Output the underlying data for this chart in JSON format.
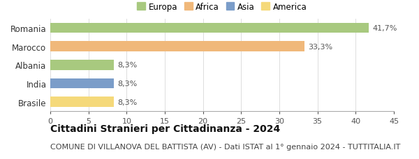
{
  "categories": [
    "Romania",
    "Marocco",
    "Albania",
    "India",
    "Brasile"
  ],
  "values": [
    41.7,
    33.3,
    8.3,
    8.3,
    8.3
  ],
  "labels": [
    "41,7%",
    "33,3%",
    "8,3%",
    "8,3%",
    "8,3%"
  ],
  "bar_colors": [
    "#a8c97f",
    "#f0b87a",
    "#a8c97f",
    "#7b9dc9",
    "#f5d97a"
  ],
  "legend_entries": [
    {
      "label": "Europa",
      "color": "#a8c97f"
    },
    {
      "label": "Africa",
      "color": "#f0b87a"
    },
    {
      "label": "Asia",
      "color": "#7b9dc9"
    },
    {
      "label": "America",
      "color": "#f5d97a"
    }
  ],
  "xlim": [
    0,
    45
  ],
  "xticks": [
    0,
    5,
    10,
    15,
    20,
    25,
    30,
    35,
    40,
    45
  ],
  "title": "Cittadini Stranieri per Cittadinanza - 2024",
  "subtitle": "COMUNE DI VILLANOVA DEL BATTISTA (AV) - Dati ISTAT al 1° gennaio 2024 - TUTTITALIA.IT",
  "title_fontsize": 10,
  "subtitle_fontsize": 8,
  "background_color": "#ffffff"
}
